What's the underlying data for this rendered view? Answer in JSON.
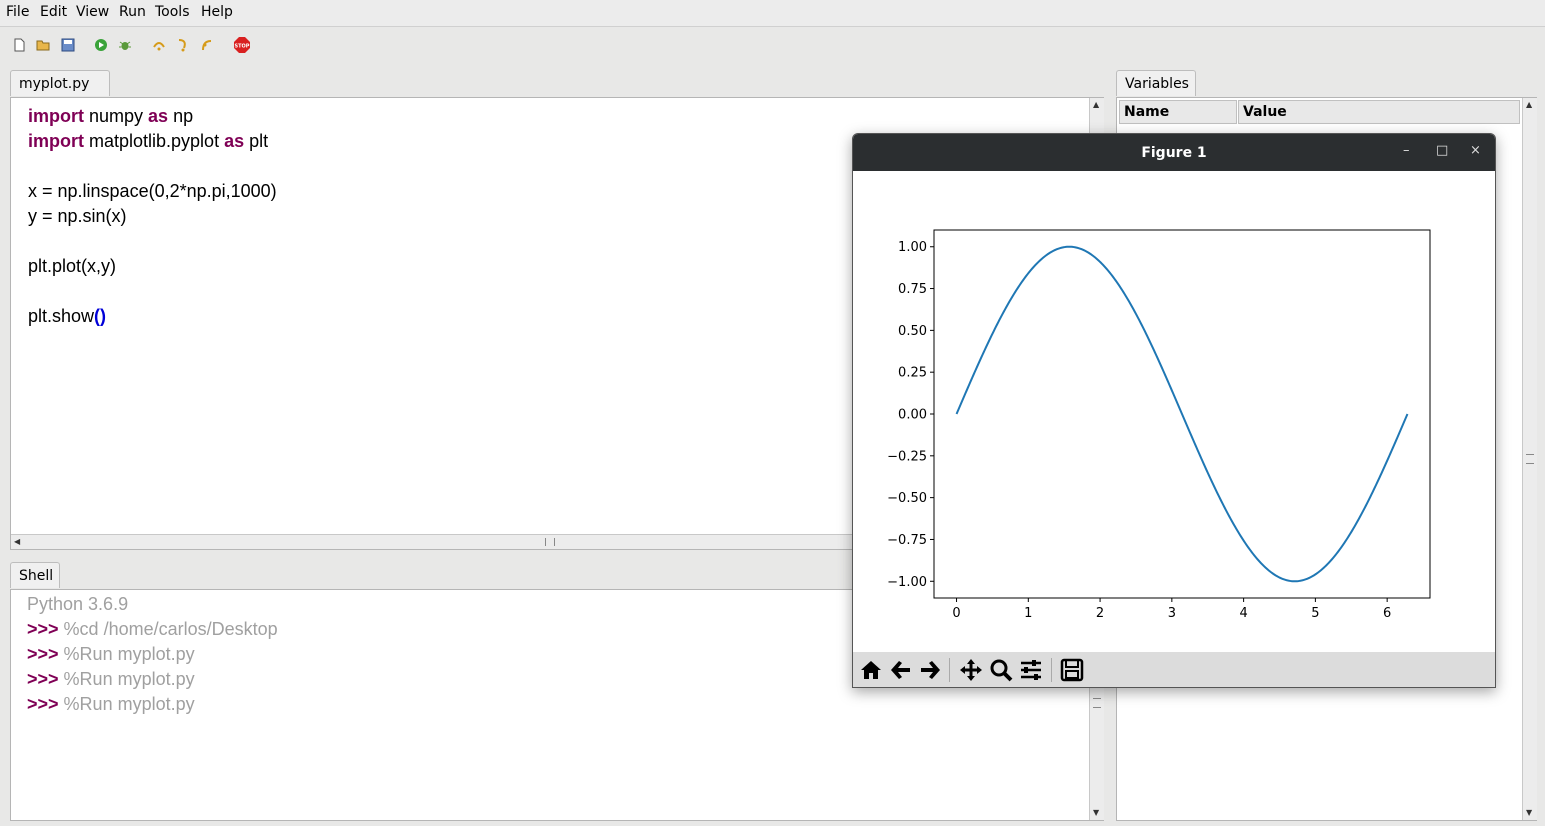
{
  "menu": [
    "File",
    "Edit",
    "View",
    "Run",
    "Tools",
    "Help"
  ],
  "toolbar": {
    "icons": [
      "new-file-icon",
      "open-folder-icon",
      "save-icon",
      "run-icon",
      "debug-icon",
      "step-over-icon",
      "step-into-icon",
      "step-out-icon",
      "stop-icon"
    ],
    "stop_label": "STOP"
  },
  "editor": {
    "tab_label": "myplot.py",
    "tab_close": "×",
    "lines": [
      {
        "kw1": "import",
        "t1": " numpy ",
        "kw2": "as",
        "t2": " np"
      },
      {
        "kw1": "import",
        "t1": " matplotlib.pyplot ",
        "kw2": "as",
        "t2": " plt"
      },
      {
        "text": "x = np.linspace(0,2*np.pi,1000)"
      },
      {
        "text": "y = np.sin(x)"
      },
      {
        "text": "plt.plot(x,y)"
      },
      {
        "text": "plt.show",
        "paren": "()"
      }
    ]
  },
  "shell": {
    "tab_label": "Shell",
    "version": "Python 3.6.9",
    "prompt": ">>>",
    "commands": [
      " %cd /home/carlos/Desktop",
      " %Run myplot.py",
      " %Run myplot.py",
      " %Run myplot.py"
    ]
  },
  "variables": {
    "tab_label": "Variables",
    "col_name": "Name",
    "col_value": "Value"
  },
  "figure": {
    "title": "Figure 1",
    "minimize": "–",
    "maximize": "□",
    "close": "×",
    "nav_icons": [
      "home-icon",
      "back-arrow-icon",
      "forward-arrow-icon",
      "pan-icon",
      "zoom-icon",
      "configure-icon",
      "save-figure-icon"
    ]
  },
  "chart_data": {
    "type": "line",
    "title": "",
    "xlabel": "",
    "ylabel": "",
    "function": "sin(x)",
    "x_range": [
      0,
      6.283
    ],
    "xlim": [
      -0.314,
      6.597
    ],
    "ylim": [
      -1.1,
      1.1
    ],
    "xticks": [
      "0",
      "1",
      "2",
      "3",
      "4",
      "5",
      "6"
    ],
    "yticks": [
      "1.00",
      "0.75",
      "0.50",
      "0.25",
      "0.00",
      "−0.25",
      "−0.50",
      "−0.75",
      "−1.00"
    ],
    "ytick_values": [
      1,
      0.75,
      0.5,
      0.25,
      0,
      -0.25,
      -0.5,
      -0.75,
      -1
    ],
    "line_color": "#1f77b4",
    "grid": false
  }
}
